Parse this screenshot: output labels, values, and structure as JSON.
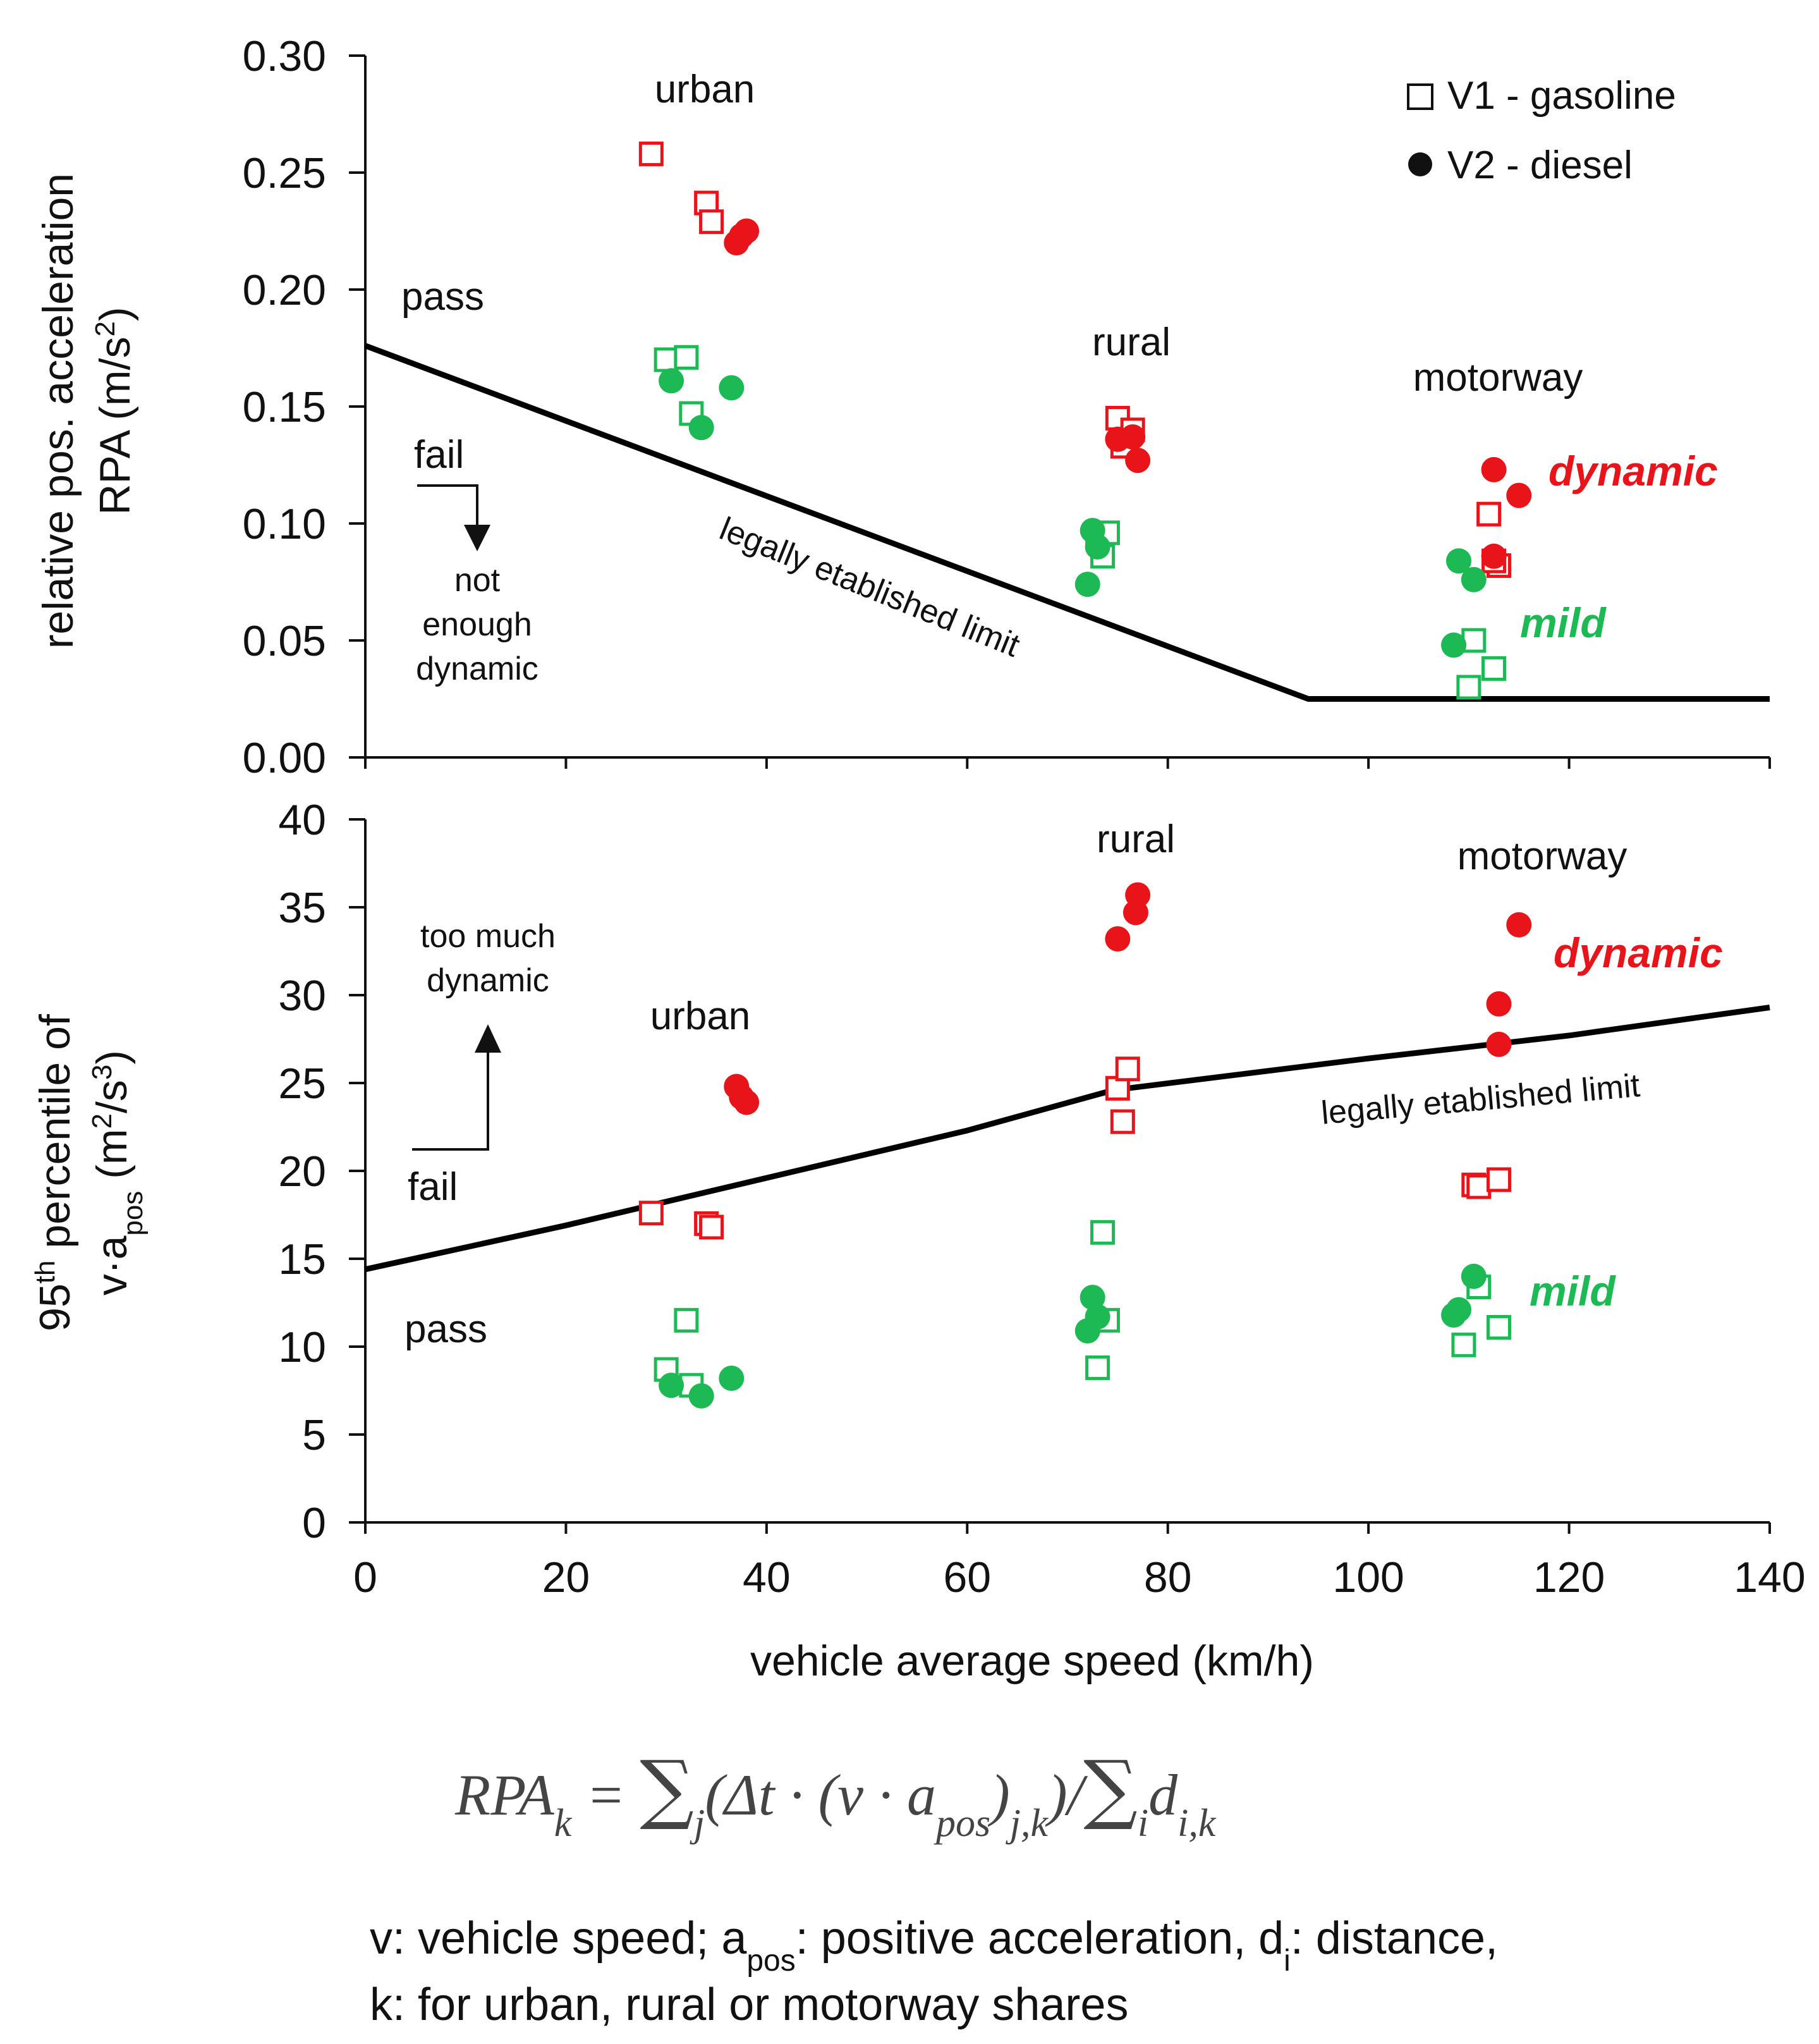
{
  "chart_data": [
    {
      "type": "scatter",
      "ylabel_line1": "relative pos. acceleration",
      "ylabel_line2": "RPA",
      "ylabel_unit": "(m/s",
      "ylabel_unit_sup": "2",
      "ylabel_unit_end": ")",
      "ylim": [
        0,
        0.3
      ],
      "yticks": [
        "0.00",
        "0.05",
        "0.10",
        "0.15",
        "0.20",
        "0.25",
        "0.30"
      ],
      "xlim": [
        0,
        140
      ],
      "legend": {
        "v1": "V1 - gasoline",
        "v2": "V2 - diesel",
        "position": "top-right"
      },
      "regions": {
        "urban": "urban",
        "rural": "rural",
        "motorway": "motorway"
      },
      "annotations": {
        "pass": "pass",
        "fail": "fail",
        "not1": "not",
        "not2": "enough",
        "not3": "dynamic"
      },
      "styles": {
        "dynamic": "dynamic",
        "mild": "mild"
      },
      "limit_label": "legally etablished limit",
      "limit_line": [
        [
          0,
          0.176
        ],
        [
          94,
          0.025
        ],
        [
          140,
          0.025
        ]
      ],
      "series": [
        {
          "name": "V1 gasoline dynamic",
          "marker": "square",
          "color": "#e8141a",
          "points": [
            [
              28.5,
              0.258
            ],
            [
              34,
              0.237
            ],
            [
              34.5,
              0.229
            ],
            [
              75,
              0.145
            ],
            [
              76.5,
              0.14
            ],
            [
              75.5,
              0.133
            ],
            [
              112,
              0.104
            ],
            [
              113,
              0.082
            ],
            [
              112.5,
              0.084
            ]
          ]
        },
        {
          "name": "V2 diesel dynamic",
          "marker": "circle",
          "color": "#e8141a",
          "points": [
            [
              37,
              0.22
            ],
            [
              38,
              0.225
            ],
            [
              37.5,
              0.223
            ],
            [
              75,
              0.136
            ],
            [
              76.5,
              0.137
            ],
            [
              77,
              0.127
            ],
            [
              112.5,
              0.123
            ],
            [
              115,
              0.112
            ],
            [
              112.5,
              0.086
            ]
          ]
        },
        {
          "name": "V1 gasoline mild",
          "marker": "square",
          "color": "#1db954",
          "points": [
            [
              30,
              0.17
            ],
            [
              32,
              0.171
            ],
            [
              32.5,
              0.147
            ],
            [
              73,
              0.095
            ],
            [
              74,
              0.096
            ],
            [
              73.5,
              0.086
            ],
            [
              110.5,
              0.05
            ],
            [
              110,
              0.03
            ],
            [
              112.5,
              0.038
            ]
          ]
        },
        {
          "name": "V2 diesel mild",
          "marker": "circle",
          "color": "#1db954",
          "points": [
            [
              30.5,
              0.161
            ],
            [
              33.5,
              0.141
            ],
            [
              36.5,
              0.158
            ],
            [
              72.5,
              0.097
            ],
            [
              73,
              0.09
            ],
            [
              72,
              0.074
            ],
            [
              109,
              0.084
            ],
            [
              110.5,
              0.076
            ],
            [
              108.5,
              0.048
            ]
          ]
        }
      ]
    },
    {
      "type": "scatter",
      "ylabel_line1a": "95",
      "ylabel_line1sup": "th",
      "ylabel_line1b": " percentile of",
      "ylabel_line2a": "v·a",
      "ylabel_line2sub": "pos",
      "ylabel_line2b": " (m",
      "ylabel_line2sup1": "2",
      "ylabel_line2c": "/s",
      "ylabel_line2sup2": "3",
      "ylabel_line2d": ")",
      "ylim": [
        0,
        40
      ],
      "yticks": [
        "0",
        "5",
        "10",
        "15",
        "20",
        "25",
        "30",
        "35",
        "40"
      ],
      "xlim": [
        0,
        140
      ],
      "xticks": [
        "0",
        "20",
        "40",
        "60",
        "80",
        "100",
        "120",
        "140"
      ],
      "xlabel": "vehicle average speed (km/h)",
      "regions": {
        "urban": "urban",
        "rural": "rural",
        "motorway": "motorway"
      },
      "annotations": {
        "too1": "too much",
        "too2": "dynamic",
        "fail": "fail",
        "pass": "pass"
      },
      "styles": {
        "dynamic": "dynamic",
        "mild": "mild"
      },
      "limit_label": "legally etablished limit",
      "limit_line": [
        [
          0,
          14.4
        ],
        [
          20,
          16.9
        ],
        [
          40,
          19.6
        ],
        [
          60,
          22.3
        ],
        [
          74.6,
          24.6
        ],
        [
          100,
          26.4
        ],
        [
          120,
          27.7
        ],
        [
          140,
          29.3
        ]
      ],
      "series": [
        {
          "name": "V1 gasoline dynamic",
          "marker": "square",
          "color": "#e8141a",
          "points": [
            [
              28.5,
              17.6
            ],
            [
              34,
              17.0
            ],
            [
              34.5,
              16.8
            ],
            [
              75,
              24.7
            ],
            [
              76,
              25.8
            ],
            [
              75.5,
              22.8
            ],
            [
              110.5,
              19.2
            ],
            [
              111,
              19.1
            ],
            [
              113,
              19.5
            ]
          ]
        },
        {
          "name": "V2 diesel dynamic",
          "marker": "circle",
          "color": "#e8141a",
          "points": [
            [
              37,
              24.8
            ],
            [
              38,
              23.9
            ],
            [
              37.5,
              24.2
            ],
            [
              75,
              33.2
            ],
            [
              76.8,
              34.7
            ],
            [
              77,
              35.7
            ],
            [
              113,
              29.5
            ],
            [
              115,
              34.0
            ],
            [
              113,
              27.2
            ]
          ]
        },
        {
          "name": "V1 gasoline mild",
          "marker": "square",
          "color": "#1db954",
          "points": [
            [
              30,
              8.7
            ],
            [
              32,
              11.5
            ],
            [
              32.5,
              7.8
            ],
            [
              73.5,
              16.5
            ],
            [
              74,
              11.5
            ],
            [
              73,
              8.8
            ],
            [
              111,
              13.4
            ],
            [
              109.5,
              10.1
            ],
            [
              113,
              11.1
            ]
          ]
        },
        {
          "name": "V2 diesel mild",
          "marker": "circle",
          "color": "#1db954",
          "points": [
            [
              30.5,
              7.8
            ],
            [
              33.5,
              7.2
            ],
            [
              36.5,
              8.2
            ],
            [
              72.5,
              12.8
            ],
            [
              73,
              11.7
            ],
            [
              72,
              10.9
            ],
            [
              110.5,
              14.0
            ],
            [
              109,
              12.1
            ],
            [
              108.5,
              11.8
            ]
          ]
        }
      ]
    }
  ],
  "formula": {
    "lhs": "RPA",
    "lhs_sub": "k",
    "eq": " = ",
    "sum1_sub": "j",
    "open": "(",
    "delta_t": "Δt",
    "dot": " · ",
    "paren_v": "(v · a",
    "pos_sub": "pos",
    "close_inner": ")",
    "jk_sub": "j,k",
    "close": ")",
    "slash": "/",
    "sum2_sub": "i",
    "d": "d",
    "ik_sub": "i,k"
  },
  "caption": {
    "line1a": "v: vehicle speed; a",
    "line1sub1": "pos",
    "line1b": ": positive acceleration, d",
    "line1sub2": "i",
    "line1c": ": distance,",
    "line2": "k: for urban, rural or motorway shares"
  }
}
